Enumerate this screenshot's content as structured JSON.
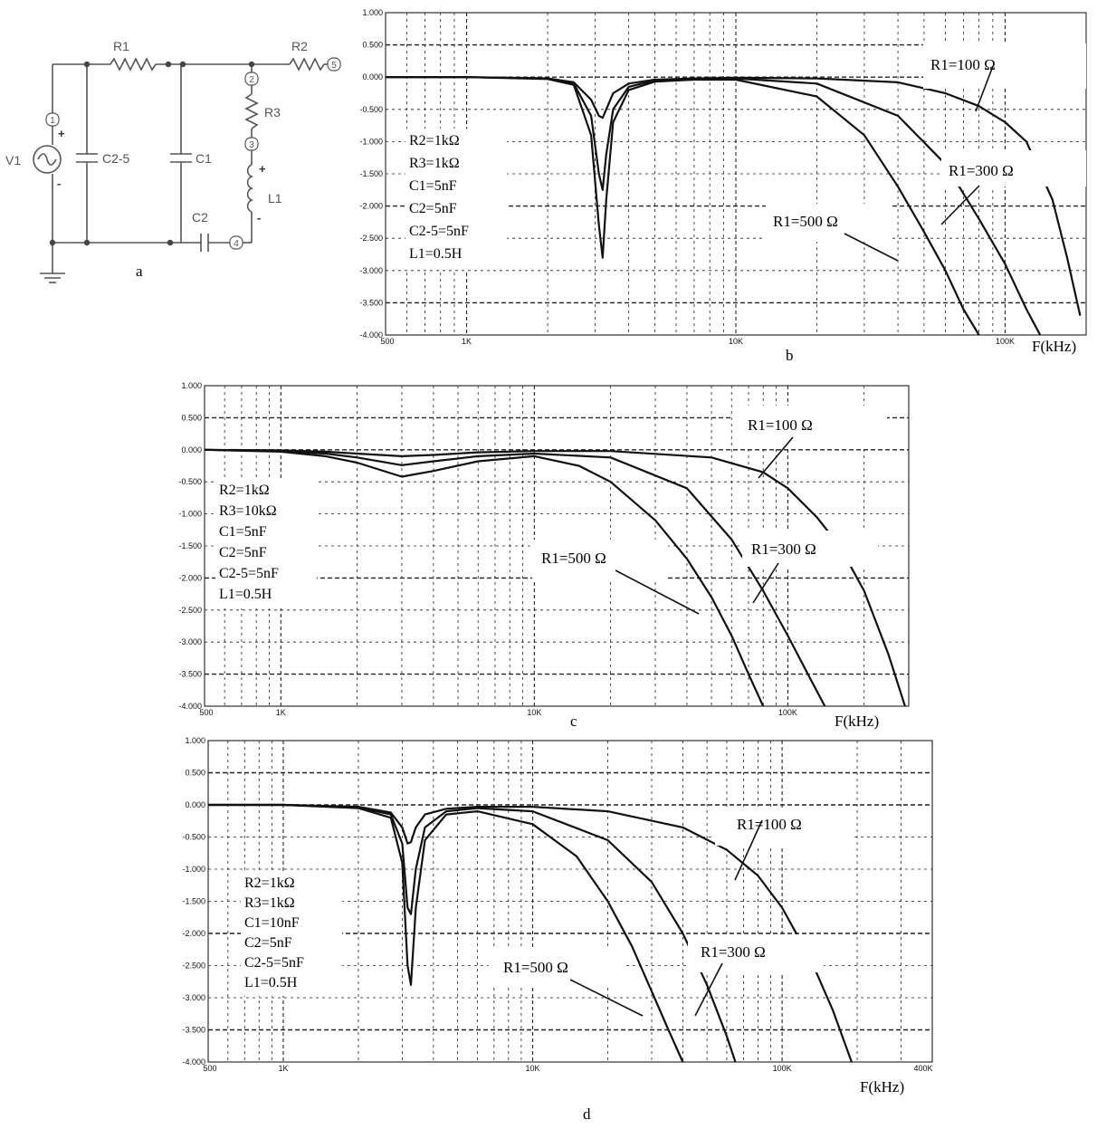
{
  "schematic": {
    "letter": "a",
    "components": [
      {
        "id": "R1",
        "label": "R1"
      },
      {
        "id": "R2",
        "label": "R2"
      },
      {
        "id": "R3",
        "label": "R3"
      },
      {
        "id": "C1",
        "label": "C1"
      },
      {
        "id": "C2",
        "label": "C2"
      },
      {
        "id": "C25",
        "label": "C2-5"
      },
      {
        "id": "L1",
        "label": "L1"
      },
      {
        "id": "V1",
        "label": "V1"
      }
    ],
    "nodes": [
      "1",
      "2",
      "3",
      "4",
      "5"
    ],
    "signs": {
      "plus": "+",
      "minus": "-"
    }
  },
  "chart_data": [
    {
      "id": "b",
      "letter": "b",
      "type": "line",
      "x_scale": "log",
      "xlim": [
        500,
        200000
      ],
      "ylim": [
        -4.0,
        1.0
      ],
      "xticks": [
        {
          "v": 500,
          "label": "500"
        },
        {
          "v": 1000,
          "label": "1K"
        },
        {
          "v": 10000,
          "label": "10K"
        },
        {
          "v": 100000,
          "label": "100K"
        }
      ],
      "yticks": [
        "1.000",
        "0.500",
        "0.000",
        "-0.500",
        "-1.000",
        "-1.500",
        "-2.000",
        "-2.500",
        "-3.000",
        "-3.500",
        "-4.000"
      ],
      "xlabel": "F(kHz)",
      "params": [
        "R2=1kΩ",
        "R3=1kΩ",
        "C1=5nF",
        "C2=5nF",
        "C2-5=5nF",
        "L1=0.5H"
      ],
      "series": [
        {
          "name": "R1=100 Ω",
          "x": [
            500,
            1000,
            2000,
            2500,
            2900,
            3100,
            3200,
            3300,
            3500,
            4000,
            5000,
            7000,
            10000,
            20000,
            40000,
            60000,
            80000,
            100000,
            120000,
            150000,
            170000,
            190000
          ],
          "y": [
            0,
            0,
            -0.02,
            -0.08,
            -0.35,
            -0.6,
            -0.63,
            -0.5,
            -0.25,
            -0.1,
            -0.04,
            -0.02,
            -0.01,
            -0.02,
            -0.08,
            -0.25,
            -0.45,
            -0.7,
            -1.0,
            -1.9,
            -2.8,
            -3.7
          ]
        },
        {
          "name": "R1=300 Ω",
          "x": [
            500,
            1000,
            2000,
            2500,
            2900,
            3100,
            3200,
            3300,
            3500,
            4000,
            5000,
            7000,
            10000,
            20000,
            40000,
            60000,
            80000,
            100000,
            120000,
            135000
          ],
          "y": [
            0,
            0,
            -0.02,
            -0.1,
            -0.6,
            -1.5,
            -1.75,
            -1.2,
            -0.5,
            -0.15,
            -0.05,
            -0.02,
            -0.02,
            -0.1,
            -0.6,
            -1.35,
            -2.2,
            -2.9,
            -3.6,
            -4.0
          ]
        },
        {
          "name": "R1=500 Ω",
          "x": [
            500,
            1000,
            2000,
            2500,
            2900,
            3100,
            3200,
            3300,
            3500,
            4000,
            5000,
            7000,
            10000,
            20000,
            30000,
            40000,
            50000,
            60000,
            70000,
            80000
          ],
          "y": [
            0,
            0,
            -0.03,
            -0.12,
            -0.9,
            -2.3,
            -2.8,
            -1.9,
            -0.7,
            -0.2,
            -0.07,
            -0.04,
            -0.04,
            -0.3,
            -0.9,
            -1.7,
            -2.4,
            -3.0,
            -3.6,
            -4.0
          ]
        }
      ],
      "annotations": [
        {
          "series": 0,
          "text": "R1=100 Ω"
        },
        {
          "series": 1,
          "text": "R1=300 Ω"
        },
        {
          "series": 2,
          "text": "R1=500 Ω"
        }
      ]
    },
    {
      "id": "c",
      "letter": "c",
      "type": "line",
      "x_scale": "log",
      "xlim": [
        500,
        300000
      ],
      "ylim": [
        -4.0,
        1.0
      ],
      "xticks": [
        {
          "v": 500,
          "label": "500"
        },
        {
          "v": 1000,
          "label": "1K"
        },
        {
          "v": 10000,
          "label": "10K"
        },
        {
          "v": 100000,
          "label": "100K"
        }
      ],
      "yticks": [
        "1.000",
        "0.500",
        "0.000",
        "-0.500",
        "-1.000",
        "-1.500",
        "-2.000",
        "-2.500",
        "-3.000",
        "-3.500",
        "-4.000"
      ],
      "xlabel": "F(kHz)",
      "params": [
        "R2=1kΩ",
        "R3=10kΩ",
        "C1=5nF",
        "C2=5nF",
        "C2-5=5nF",
        "L1=0.5H"
      ],
      "series": [
        {
          "name": "R1=100 Ω",
          "x": [
            500,
            1000,
            1500,
            2000,
            3000,
            4000,
            6000,
            10000,
            20000,
            50000,
            80000,
            100000,
            130000,
            160000,
            200000,
            250000,
            290000
          ],
          "y": [
            0,
            -0.01,
            -0.03,
            -0.06,
            -0.1,
            -0.08,
            -0.04,
            -0.02,
            -0.02,
            -0.12,
            -0.35,
            -0.6,
            -1.05,
            -1.5,
            -2.2,
            -3.2,
            -4.0
          ]
        },
        {
          "name": "R1=300 Ω",
          "x": [
            500,
            1000,
            1500,
            2000,
            3000,
            4000,
            6000,
            10000,
            20000,
            40000,
            60000,
            80000,
            100000,
            120000,
            140000
          ],
          "y": [
            0,
            -0.02,
            -0.06,
            -0.12,
            -0.24,
            -0.18,
            -0.1,
            -0.06,
            -0.12,
            -0.6,
            -1.4,
            -2.2,
            -2.9,
            -3.5,
            -4.0
          ]
        },
        {
          "name": "R1=500 Ω",
          "x": [
            500,
            1000,
            1500,
            2000,
            3000,
            4000,
            6000,
            10000,
            15000,
            20000,
            30000,
            40000,
            50000,
            60000,
            70000,
            80000
          ],
          "y": [
            0,
            -0.03,
            -0.1,
            -0.2,
            -0.42,
            -0.33,
            -0.18,
            -0.1,
            -0.25,
            -0.5,
            -1.1,
            -1.7,
            -2.3,
            -2.9,
            -3.5,
            -4.0
          ]
        }
      ],
      "annotations": [
        {
          "series": 0,
          "text": "R1=100 Ω"
        },
        {
          "series": 1,
          "text": "R1=300 Ω"
        },
        {
          "series": 2,
          "text": "R1=500 Ω"
        }
      ]
    },
    {
      "id": "d",
      "letter": "d",
      "type": "line",
      "x_scale": "log",
      "xlim": [
        500,
        400000
      ],
      "ylim": [
        -4.0,
        1.0
      ],
      "xticks": [
        {
          "v": 500,
          "label": "500"
        },
        {
          "v": 1000,
          "label": "1K"
        },
        {
          "v": 10000,
          "label": "10K"
        },
        {
          "v": 100000,
          "label": "100K"
        },
        {
          "v": 400000,
          "label": "400K"
        }
      ],
      "yticks": [
        "1.000",
        "0.500",
        "0.000",
        "-0.500",
        "-1.000",
        "-1.500",
        "-2.000",
        "-2.500",
        "-3.000",
        "-3.500",
        "-4.000"
      ],
      "xlabel": "F(kHz)",
      "params": [
        "R2=1kΩ",
        "R3=1kΩ",
        "C1=10nF",
        "C2=5nF",
        "C2-5=5nF",
        "L1=0.5H"
      ],
      "series": [
        {
          "name": "R1=100 Ω",
          "x": [
            500,
            1000,
            2000,
            2700,
            3000,
            3150,
            3250,
            3400,
            3700,
            4500,
            6000,
            10000,
            20000,
            40000,
            60000,
            80000,
            100000,
            130000,
            160000,
            190000
          ],
          "y": [
            0,
            0,
            -0.03,
            -0.12,
            -0.35,
            -0.6,
            -0.58,
            -0.35,
            -0.15,
            -0.06,
            -0.03,
            -0.03,
            -0.1,
            -0.35,
            -0.7,
            -1.1,
            -1.6,
            -2.4,
            -3.2,
            -4.0
          ]
        },
        {
          "name": "R1=300 Ω",
          "x": [
            500,
            1000,
            2000,
            2700,
            3000,
            3150,
            3250,
            3400,
            3700,
            4500,
            6000,
            10000,
            20000,
            30000,
            40000,
            50000,
            60000,
            65000
          ],
          "y": [
            0,
            0,
            -0.04,
            -0.15,
            -0.6,
            -1.6,
            -1.7,
            -1.0,
            -0.35,
            -0.1,
            -0.05,
            -0.1,
            -0.55,
            -1.2,
            -2.0,
            -2.8,
            -3.6,
            -4.0
          ]
        },
        {
          "name": "R1=500 Ω",
          "x": [
            500,
            1000,
            2000,
            2700,
            3000,
            3150,
            3250,
            3400,
            3700,
            4500,
            6000,
            10000,
            15000,
            20000,
            25000,
            30000,
            35000,
            40000
          ],
          "y": [
            0,
            0,
            -0.05,
            -0.2,
            -0.9,
            -2.5,
            -2.8,
            -1.6,
            -0.55,
            -0.15,
            -0.1,
            -0.3,
            -0.8,
            -1.5,
            -2.2,
            -2.9,
            -3.5,
            -4.0
          ]
        }
      ],
      "annotations": [
        {
          "series": 0,
          "text": "R1=100 Ω"
        },
        {
          "series": 1,
          "text": "R1=300 Ω"
        },
        {
          "series": 2,
          "text": "R1=500 Ω"
        }
      ]
    }
  ]
}
